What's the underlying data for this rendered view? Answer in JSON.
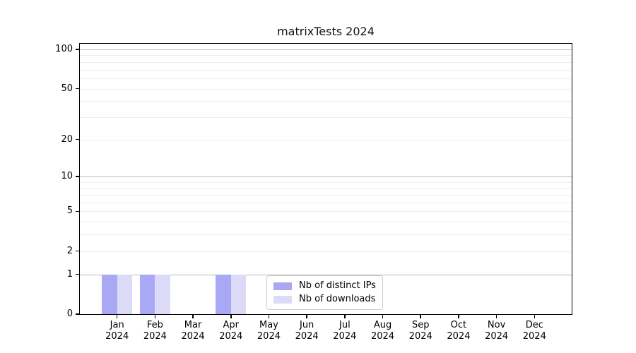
{
  "title": "matrixTests 2024",
  "chart_data": {
    "type": "bar",
    "title": "matrixTests 2024",
    "xlabel": "",
    "ylabel": "",
    "categories": [
      "Jan",
      "Feb",
      "Mar",
      "Apr",
      "May",
      "Jun",
      "Jul",
      "Aug",
      "Sep",
      "Oct",
      "Nov",
      "Dec"
    ],
    "year_label": "2024",
    "series": [
      {
        "name": "Nb of distinct IPs",
        "color": "#a8a8f4",
        "values": [
          1,
          1,
          0,
          1,
          0,
          0,
          0,
          0,
          0,
          0,
          0,
          0
        ]
      },
      {
        "name": "Nb of downloads",
        "color": "#dbdbf8",
        "values": [
          1,
          1,
          0,
          1,
          0,
          0,
          0,
          0,
          0,
          0,
          0,
          0
        ]
      }
    ],
    "y_scale": "log1p",
    "ylim": [
      0,
      112
    ],
    "y_ticks": [
      0,
      1,
      2,
      5,
      10,
      20,
      50,
      100
    ],
    "y_major_gridlines": [
      1,
      10,
      100
    ],
    "y_minor_gridlines": [
      2,
      3,
      4,
      5,
      6,
      7,
      8,
      9,
      20,
      30,
      40,
      50,
      60,
      70,
      80,
      90
    ],
    "grid": true,
    "legend_position": "lower center"
  },
  "colors": {
    "background": "#ffffff",
    "axis": "#000000",
    "major_grid": "#b9b9b9",
    "minor_grid": "#ededed",
    "legend_border": "#cccccc"
  }
}
